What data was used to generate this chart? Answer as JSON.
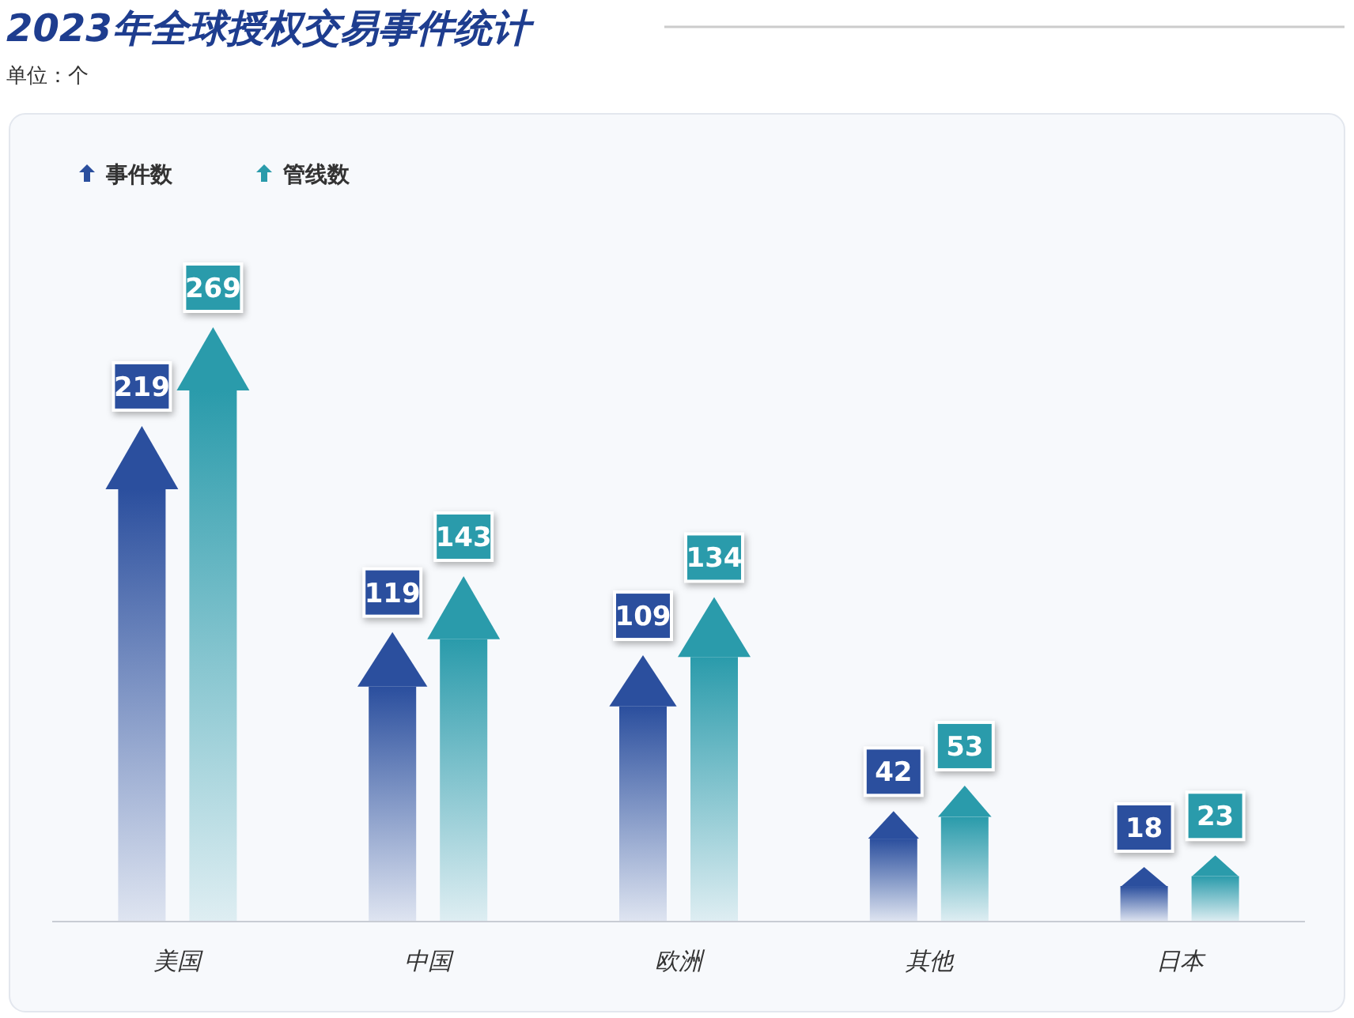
{
  "chart_data": {
    "type": "bar",
    "title": "2023年全球授权交易事件统计",
    "subtitle": "单位：个",
    "categories": [
      "美国",
      "中国",
      "欧洲",
      "其他",
      "日本"
    ],
    "series": [
      {
        "name": "事件数",
        "color": "#2b4f9e",
        "values": [
          219,
          119,
          109,
          42,
          18
        ]
      },
      {
        "name": "管线数",
        "color": "#2a9bab",
        "values": [
          269,
          143,
          134,
          53,
          23
        ]
      }
    ],
    "data_labels": true,
    "legend": "top left",
    "grid": false
  }
}
